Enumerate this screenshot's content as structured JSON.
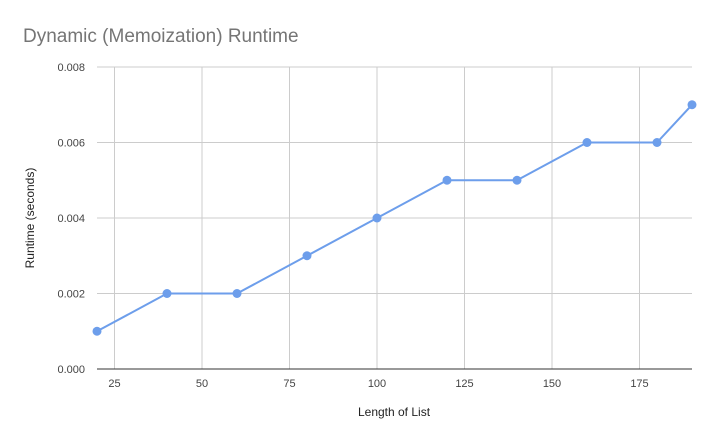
{
  "chart_data": {
    "type": "line",
    "title": "Dynamic (Memoization) Runtime",
    "xlabel": "Length of List",
    "ylabel": "Runtime (seconds)",
    "xlim": [
      20,
      190
    ],
    "ylim": [
      0,
      0.008
    ],
    "x_ticks": [
      25,
      50,
      75,
      100,
      125,
      150,
      175
    ],
    "y_ticks": [
      0,
      0.002,
      0.004,
      0.006,
      0.008
    ],
    "y_tick_labels": [
      "0.000",
      "0.002",
      "0.004",
      "0.006",
      "0.008"
    ],
    "grid": true,
    "legend": "none",
    "series": [
      {
        "color": "#6d9eeb",
        "x": [
          20,
          40,
          60,
          80,
          100,
          120,
          140,
          160,
          180,
          190
        ],
        "y": [
          0.001,
          0.002,
          0.002,
          0.003,
          0.004,
          0.005,
          0.005,
          0.006,
          0.006,
          0.007
        ]
      }
    ]
  }
}
